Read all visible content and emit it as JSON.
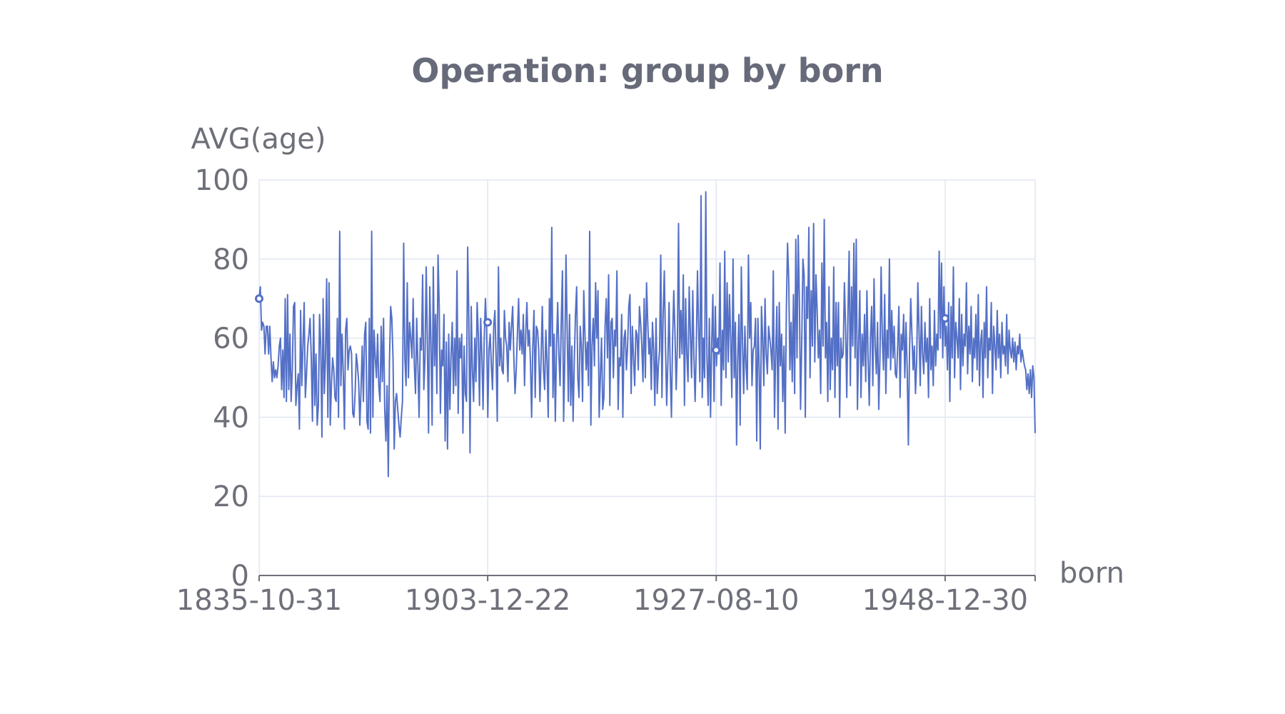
{
  "chart_data": {
    "type": "line",
    "title": "Operation: group by born",
    "xlabel": "born",
    "ylabel": "AVG(age)",
    "ylim": [
      0,
      100
    ],
    "yticks": [
      0,
      20,
      40,
      60,
      80,
      100
    ],
    "x_tick_labels": [
      "1835-10-31",
      "1903-12-22",
      "1927-08-10",
      "1948-12-30"
    ],
    "grid": true,
    "legend": "none",
    "series": [
      {
        "color": "#5470c6",
        "values": [
          70,
          73,
          62,
          64,
          63,
          56,
          63,
          63,
          56,
          63,
          55,
          49,
          54,
          50,
          52,
          50,
          53,
          58,
          60,
          47,
          57,
          45,
          70,
          44,
          71,
          47,
          61,
          44,
          52,
          68,
          69,
          43,
          48,
          51,
          37,
          67,
          48,
          58,
          69,
          45,
          51,
          58,
          61,
          65,
          55,
          39,
          66,
          43,
          56,
          38,
          43,
          66,
          58,
          35,
          70,
          46,
          55,
          75,
          40,
          74,
          38,
          48,
          55,
          52,
          45,
          44,
          65,
          40,
          87,
          48,
          61,
          51,
          37,
          62,
          65,
          52,
          57,
          58,
          56,
          41,
          40,
          46,
          56,
          53,
          49,
          38,
          47,
          58,
          44,
          61,
          64,
          39,
          37,
          65,
          36,
          87,
          40,
          62,
          55,
          50,
          61,
          48,
          44,
          63,
          49,
          65,
          42,
          34,
          48,
          25,
          54,
          68,
          65,
          55,
          32,
          44,
          46,
          42,
          38,
          35,
          40,
          44,
          84,
          55,
          48,
          74,
          50,
          64,
          60,
          55,
          70,
          53,
          46,
          65,
          53,
          40,
          60,
          57,
          76,
          47,
          55,
          78,
          59,
          36,
          73,
          59,
          38,
          78,
          53,
          66,
          46,
          81,
          68,
          41,
          57,
          53,
          66,
          34,
          59,
          32,
          61,
          42,
          56,
          64,
          46,
          60,
          48,
          77,
          41,
          60,
          55,
          61,
          36,
          58,
          46,
          44,
          83,
          65,
          31,
          68,
          52,
          44,
          60,
          49,
          69,
          61,
          43,
          65,
          56,
          42,
          60,
          70,
          62,
          40,
          57,
          61,
          53,
          47,
          63,
          67,
          55,
          39,
          78,
          53,
          60,
          52,
          51,
          67,
          60,
          58,
          49,
          64,
          57,
          63,
          68,
          55,
          46,
          52,
          61,
          70,
          57,
          62,
          56,
          66,
          48,
          61,
          69,
          58,
          62,
          54,
          40,
          58,
          67,
          45,
          63,
          62,
          57,
          44,
          55,
          68,
          52,
          47,
          62,
          54,
          40,
          70,
          58,
          88,
          45,
          61,
          39,
          58,
          69,
          56,
          48,
          64,
          77,
          39,
          55,
          81,
          62,
          44,
          66,
          43,
          58,
          39,
          54,
          66,
          73,
          50,
          45,
          63,
          58,
          44,
          72,
          61,
          52,
          59,
          48,
          87,
          38,
          58,
          65,
          53,
          74,
          60,
          72,
          40,
          50,
          60,
          42,
          45,
          63,
          70,
          55,
          76,
          43,
          64,
          65,
          50,
          62,
          58,
          77,
          42,
          55,
          53,
          66,
          40,
          60,
          62,
          52,
          58,
          68,
          71,
          46,
          63,
          55,
          48,
          62,
          61,
          52,
          68,
          64,
          58,
          49,
          70,
          50,
          74,
          64,
          56,
          60,
          47,
          64,
          57,
          43,
          65,
          46,
          53,
          57,
          81,
          45,
          66,
          77,
          58,
          43,
          54,
          69,
          52,
          40,
          60,
          72,
          61,
          47,
          58,
          89,
          55,
          67,
          56,
          76,
          43,
          70,
          56,
          49,
          73,
          61,
          50,
          72,
          55,
          44,
          58,
          77,
          62,
          49,
          96,
          45,
          60,
          50,
          97,
          55,
          43,
          65,
          40,
          59,
          71,
          44,
          68,
          53,
          60,
          56,
          79,
          43,
          62,
          52,
          82,
          50,
          74,
          54,
          71,
          60,
          45,
          80,
          50,
          64,
          33,
          55,
          66,
          38,
          78,
          59,
          46,
          63,
          53,
          47,
          81,
          60,
          69,
          48,
          57,
          58,
          65,
          34,
          65,
          53,
          32,
          68,
          60,
          48,
          70,
          56,
          51,
          63,
          60,
          57,
          52,
          77,
          40,
          56,
          68,
          37,
          69,
          53,
          61,
          44,
          58,
          36,
          67,
          84,
          75,
          52,
          64,
          49,
          71,
          46,
          85,
          55,
          86,
          70,
          42,
          59,
          80,
          76,
          40,
          73,
          65,
          88,
          50,
          72,
          58,
          89,
          54,
          76,
          67,
          55,
          62,
          46,
          79,
          58,
          90,
          55,
          64,
          44,
          73,
          47,
          60,
          52,
          78,
          45,
          69,
          53,
          69,
          40,
          60,
          55,
          56,
          74,
          63,
          45,
          66,
          82,
          48,
          73,
          58,
          84,
          55,
          85,
          42,
          58,
          72,
          45,
          61,
          53,
          66,
          49,
          72,
          55,
          43,
          60,
          68,
          48,
          75,
          58,
          51,
          64,
          42,
          55,
          78,
          60,
          52,
          71,
          46,
          62,
          55,
          80,
          52,
          67,
          55,
          63,
          51,
          50,
          58,
          68,
          45,
          61,
          57,
          66,
          50,
          64,
          52,
          33,
          57,
          70,
          61,
          52,
          58,
          46,
          54,
          74,
          62,
          48,
          68,
          56,
          51,
          64,
          54,
          60,
          45,
          70,
          52,
          58,
          48,
          67,
          53,
          61,
          57,
          82,
          60,
          79,
          55,
          73,
          58,
          63,
          52,
          69,
          44,
          68,
          55,
          78,
          50,
          64,
          60,
          55,
          70,
          47,
          66,
          53,
          61,
          58,
          74,
          51,
          63,
          56,
          68,
          49,
          60,
          55,
          66,
          52,
          71,
          48,
          59,
          62,
          45,
          64,
          55,
          73,
          50,
          60,
          57,
          69,
          46,
          63,
          58,
          52,
          67,
          55,
          61,
          50,
          64,
          56,
          58,
          53,
          66,
          51,
          62,
          57,
          55,
          60,
          54,
          59,
          52,
          58,
          56,
          61,
          54,
          57,
          55,
          53,
          52,
          47,
          51,
          46,
          52,
          45,
          53,
          50,
          36
        ]
      }
    ],
    "markers": [
      {
        "x": "1835-10-31",
        "y": 70
      },
      {
        "x": "1903-12-22",
        "y": 64
      },
      {
        "x": "1927-08-10",
        "y": 57
      },
      {
        "x": "1948-12-30",
        "y": 65
      }
    ]
  }
}
